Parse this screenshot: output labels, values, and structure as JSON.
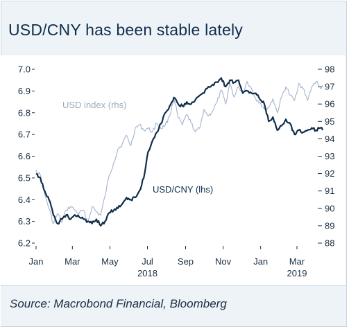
{
  "title": "USD/CNY has been stable lately",
  "source": "Source: Macrobond Financial, Bloomberg",
  "colors": {
    "usdcny": "#0f2d4a",
    "usd_index": "#a4b3cc",
    "axis": "#1a2e42"
  },
  "chart_data": {
    "type": "line",
    "title": "USD/CNY has been stable lately",
    "x_ticks": [
      "Jan",
      "Mar",
      "May",
      "Jul",
      "Sep",
      "Nov",
      "Jan",
      "Mar"
    ],
    "x_tick_dates": [
      "2018-01-01",
      "2018-03-01",
      "2018-05-01",
      "2018-07-01",
      "2018-09-01",
      "2018-11-01",
      "2019-01-01",
      "2019-03-01"
    ],
    "year_labels": [
      {
        "label": "2018",
        "date": "2018-07-01"
      },
      {
        "label": "2019",
        "date": "2019-03-01"
      }
    ],
    "x_range": [
      "2018-01-01",
      "2019-04-15"
    ],
    "y_left": {
      "range": [
        6.2,
        7.0
      ],
      "ticks": [
        "6.2",
        "6.3",
        "6.4",
        "6.5",
        "6.6",
        "6.7",
        "6.8",
        "6.9",
        "7.0"
      ]
    },
    "y_right": {
      "range": [
        88,
        98
      ],
      "ticks": [
        "88",
        "89",
        "90",
        "91",
        "92",
        "93",
        "94",
        "95",
        "96",
        "97",
        "98"
      ]
    },
    "grid": false,
    "series": [
      {
        "name": "USD/CNY (lhs)",
        "axis": "left",
        "points": [
          [
            "2018-01-01",
            6.52
          ],
          [
            "2018-01-08",
            6.5
          ],
          [
            "2018-01-15",
            6.44
          ],
          [
            "2018-01-22",
            6.4
          ],
          [
            "2018-01-29",
            6.33
          ],
          [
            "2018-02-05",
            6.29
          ],
          [
            "2018-02-12",
            6.31
          ],
          [
            "2018-02-19",
            6.33
          ],
          [
            "2018-02-26",
            6.31
          ],
          [
            "2018-03-05",
            6.33
          ],
          [
            "2018-03-12",
            6.32
          ],
          [
            "2018-03-19",
            6.31
          ],
          [
            "2018-03-26",
            6.3
          ],
          [
            "2018-04-02",
            6.29
          ],
          [
            "2018-04-09",
            6.31
          ],
          [
            "2018-04-16",
            6.28
          ],
          [
            "2018-04-23",
            6.3
          ],
          [
            "2018-04-30",
            6.34
          ],
          [
            "2018-05-07",
            6.35
          ],
          [
            "2018-05-14",
            6.36
          ],
          [
            "2018-05-21",
            6.38
          ],
          [
            "2018-05-28",
            6.41
          ],
          [
            "2018-06-04",
            6.4
          ],
          [
            "2018-06-11",
            6.41
          ],
          [
            "2018-06-18",
            6.44
          ],
          [
            "2018-06-25",
            6.5
          ],
          [
            "2018-07-02",
            6.62
          ],
          [
            "2018-07-09",
            6.67
          ],
          [
            "2018-07-16",
            6.71
          ],
          [
            "2018-07-23",
            6.75
          ],
          [
            "2018-07-30",
            6.8
          ],
          [
            "2018-08-06",
            6.83
          ],
          [
            "2018-08-13",
            6.87
          ],
          [
            "2018-08-20",
            6.84
          ],
          [
            "2018-08-27",
            6.83
          ],
          [
            "2018-09-03",
            6.85
          ],
          [
            "2018-09-10",
            6.84
          ],
          [
            "2018-09-17",
            6.86
          ],
          [
            "2018-09-24",
            6.88
          ],
          [
            "2018-10-01",
            6.89
          ],
          [
            "2018-10-08",
            6.92
          ],
          [
            "2018-10-15",
            6.93
          ],
          [
            "2018-10-22",
            6.94
          ],
          [
            "2018-10-29",
            6.96
          ],
          [
            "2018-11-05",
            6.92
          ],
          [
            "2018-11-12",
            6.95
          ],
          [
            "2018-11-19",
            6.94
          ],
          [
            "2018-11-26",
            6.95
          ],
          [
            "2018-12-03",
            6.89
          ],
          [
            "2018-12-10",
            6.9
          ],
          [
            "2018-12-17",
            6.89
          ],
          [
            "2018-12-24",
            6.89
          ],
          [
            "2018-12-31",
            6.86
          ],
          [
            "2019-01-07",
            6.84
          ],
          [
            "2019-01-14",
            6.76
          ],
          [
            "2019-01-21",
            6.78
          ],
          [
            "2019-01-28",
            6.72
          ],
          [
            "2019-02-04",
            6.74
          ],
          [
            "2019-02-11",
            6.77
          ],
          [
            "2019-02-18",
            6.75
          ],
          [
            "2019-02-25",
            6.7
          ],
          [
            "2019-03-04",
            6.72
          ],
          [
            "2019-03-11",
            6.71
          ],
          [
            "2019-03-18",
            6.72
          ],
          [
            "2019-03-25",
            6.73
          ],
          [
            "2019-04-01",
            6.72
          ],
          [
            "2019-04-08",
            6.73
          ],
          [
            "2019-04-12",
            6.72
          ]
        ]
      },
      {
        "name": "USD index (rhs)",
        "axis": "right",
        "points": [
          [
            "2018-01-01",
            92.2
          ],
          [
            "2018-01-08",
            91.9
          ],
          [
            "2018-01-15",
            90.8
          ],
          [
            "2018-01-22",
            90.0
          ],
          [
            "2018-01-29",
            89.1
          ],
          [
            "2018-02-05",
            89.7
          ],
          [
            "2018-02-12",
            89.2
          ],
          [
            "2018-02-19",
            89.9
          ],
          [
            "2018-02-26",
            90.1
          ],
          [
            "2018-03-05",
            89.9
          ],
          [
            "2018-03-12",
            89.7
          ],
          [
            "2018-03-19",
            89.9
          ],
          [
            "2018-03-26",
            89.2
          ],
          [
            "2018-04-02",
            90.1
          ],
          [
            "2018-04-09",
            89.8
          ],
          [
            "2018-04-16",
            89.6
          ],
          [
            "2018-04-23",
            90.7
          ],
          [
            "2018-04-30",
            91.9
          ],
          [
            "2018-05-07",
            92.6
          ],
          [
            "2018-05-14",
            93.4
          ],
          [
            "2018-05-21",
            93.7
          ],
          [
            "2018-05-28",
            94.2
          ],
          [
            "2018-06-04",
            93.6
          ],
          [
            "2018-06-11",
            94.6
          ],
          [
            "2018-06-18",
            94.8
          ],
          [
            "2018-06-25",
            94.5
          ],
          [
            "2018-07-02",
            94.6
          ],
          [
            "2018-07-09",
            94.4
          ],
          [
            "2018-07-16",
            94.9
          ],
          [
            "2018-07-23",
            94.6
          ],
          [
            "2018-07-30",
            94.8
          ],
          [
            "2018-08-06",
            95.3
          ],
          [
            "2018-08-13",
            96.4
          ],
          [
            "2018-08-20",
            95.2
          ],
          [
            "2018-08-27",
            94.8
          ],
          [
            "2018-09-03",
            95.4
          ],
          [
            "2018-09-10",
            94.9
          ],
          [
            "2018-09-17",
            94.4
          ],
          [
            "2018-09-24",
            94.6
          ],
          [
            "2018-10-01",
            95.7
          ],
          [
            "2018-10-08",
            95.3
          ],
          [
            "2018-10-15",
            95.6
          ],
          [
            "2018-10-22",
            96.1
          ],
          [
            "2018-10-29",
            96.8
          ],
          [
            "2018-11-05",
            96.0
          ],
          [
            "2018-11-12",
            97.2
          ],
          [
            "2018-11-19",
            96.4
          ],
          [
            "2018-11-26",
            97.0
          ],
          [
            "2018-12-03",
            96.6
          ],
          [
            "2018-12-10",
            97.3
          ],
          [
            "2018-12-17",
            96.9
          ],
          [
            "2018-12-24",
            96.3
          ],
          [
            "2018-12-31",
            96.1
          ],
          [
            "2019-01-07",
            95.7
          ],
          [
            "2019-01-14",
            95.8
          ],
          [
            "2019-01-21",
            96.3
          ],
          [
            "2019-01-28",
            95.5
          ],
          [
            "2019-02-04",
            96.4
          ],
          [
            "2019-02-11",
            97.0
          ],
          [
            "2019-02-18",
            96.5
          ],
          [
            "2019-02-25",
            96.2
          ],
          [
            "2019-03-04",
            97.2
          ],
          [
            "2019-03-11",
            96.9
          ],
          [
            "2019-03-18",
            96.2
          ],
          [
            "2019-03-25",
            97.0
          ],
          [
            "2019-04-01",
            97.3
          ],
          [
            "2019-04-08",
            96.9
          ],
          [
            "2019-04-12",
            97.1
          ]
        ]
      }
    ],
    "annotations": [
      {
        "text": "USD index (rhs)",
        "series": "USD index (rhs)"
      },
      {
        "text": "USD/CNY (lhs)",
        "series": "USD/CNY (lhs)"
      }
    ]
  }
}
